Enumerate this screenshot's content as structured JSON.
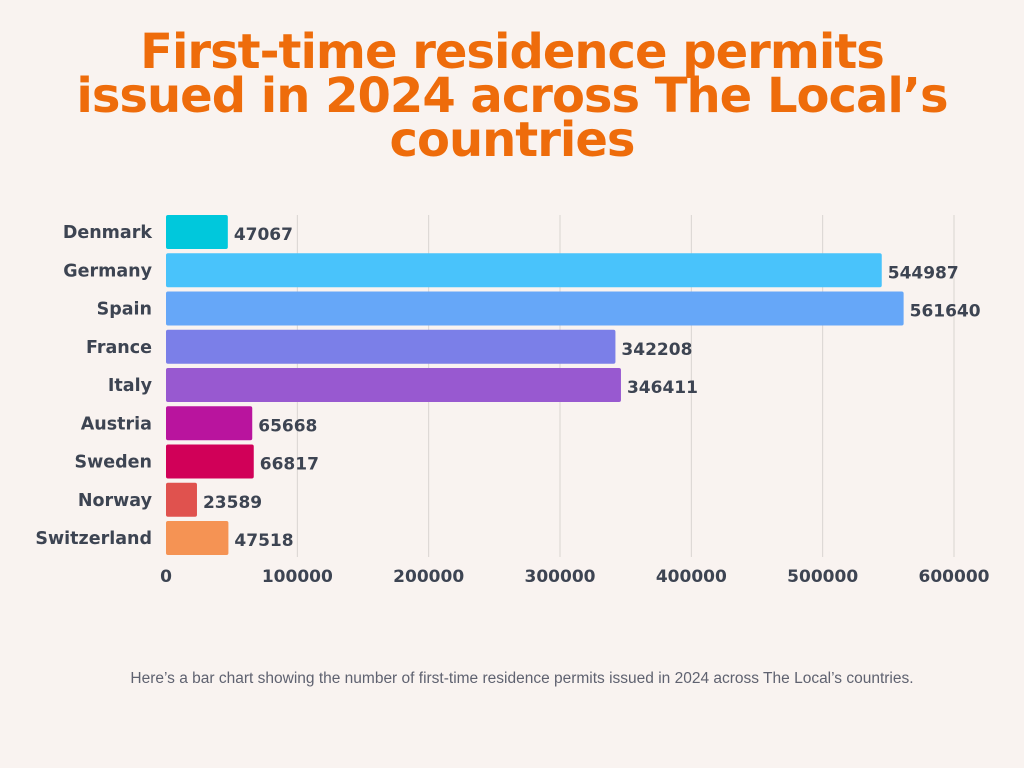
{
  "colors": {
    "background": "#f9f3f0",
    "title": "#ee6c0b",
    "text": "#3d4452",
    "caption": "#5f6270",
    "grid": "#d9d4d1",
    "bars": [
      "#00c8dc",
      "#49c3fb",
      "#66a7f8",
      "#7b7fe8",
      "#9859d0",
      "#b9149e",
      "#d10058",
      "#e0524e",
      "#f59354"
    ]
  },
  "chart_data": {
    "type": "bar",
    "orientation": "horizontal",
    "title": "First-time residence permits issued in 2024 across The Local’s countries",
    "xlabel": "",
    "ylabel": "",
    "categories": [
      "Denmark",
      "Germany",
      "Spain",
      "France",
      "Italy",
      "Austria",
      "Sweden",
      "Norway",
      "Switzerland"
    ],
    "values": [
      47067,
      544987,
      561640,
      342208,
      346411,
      65668,
      66817,
      23589,
      47518
    ],
    "value_labels": [
      "47067",
      "544987",
      "561640",
      "342208",
      "346411",
      "65668",
      "66817",
      "23589",
      "47518"
    ],
    "xlim": [
      0,
      600000
    ],
    "x_ticks": [
      0,
      100000,
      200000,
      300000,
      400000,
      500000,
      600000
    ],
    "x_tick_labels": [
      "0",
      "100000",
      "200000",
      "300000",
      "400000",
      "500000",
      "600000"
    ],
    "grid": "vertical",
    "legend": "none"
  },
  "caption": "Here’s a bar chart showing the number of first-time residence permits issued in 2024 across The Local’s countries."
}
